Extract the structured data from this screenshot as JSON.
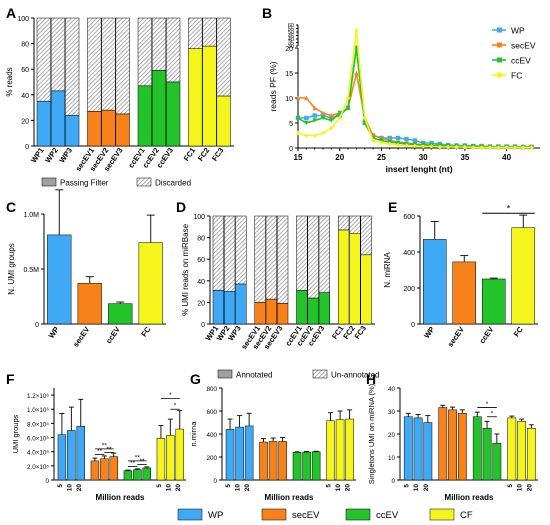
{
  "colors": {
    "WP": "#3fa9f5",
    "secEV": "#f7821b",
    "ccEV": "#22c42a",
    "FC": "#f5f51d",
    "annotated": "#a0a0a0",
    "hatch_bg": "#ffffff",
    "axis": "#000000"
  },
  "chart_data": [
    {
      "panel": "A",
      "type": "bar",
      "ylabel": "% reads",
      "ylim": [
        0,
        100
      ],
      "y_ticks": [
        "0",
        "20",
        "40",
        "60",
        "80",
        "100"
      ],
      "categories": [
        "WP1",
        "WP2",
        "WP3",
        "secEV1",
        "secEV2",
        "secEV3",
        "ccEV1",
        "ccEV2",
        "ccEV3",
        "FC1",
        "FC2",
        "FC3"
      ],
      "groups": [
        "WP",
        "WP",
        "WP",
        "secEV",
        "secEV",
        "secEV",
        "ccEV",
        "ccEV",
        "ccEV",
        "FC",
        "FC",
        "FC"
      ],
      "series": [
        {
          "name": "Passing Filter",
          "values": [
            35,
            43,
            24,
            27,
            28,
            25,
            47,
            59,
            50,
            76,
            78,
            39
          ]
        },
        {
          "name": "Discarded",
          "values": [
            65,
            57,
            76,
            73,
            72,
            75,
            53,
            41,
            50,
            24,
            22,
            61
          ]
        }
      ],
      "legend": [
        "Passing Filter",
        "Discarded"
      ]
    },
    {
      "panel": "B",
      "type": "line",
      "xlabel": "insert lenght (nt)",
      "ylabel": "reads PF (%)",
      "xlim": [
        15,
        44
      ],
      "x_ticks": [
        "15",
        "20",
        "25",
        "30",
        "35",
        "40"
      ],
      "y_ticks_low": [
        "0",
        "5",
        "10",
        "15",
        "20"
      ],
      "y_ticks_high": [
        "30",
        "35",
        "40",
        "45",
        "50",
        "55",
        "60"
      ],
      "x": [
        15,
        16,
        17,
        18,
        19,
        20,
        21,
        22,
        23,
        24,
        25,
        26,
        27,
        28,
        29,
        30,
        31,
        32,
        33,
        34,
        35,
        36,
        37,
        38,
        39,
        40,
        41,
        42,
        43
      ],
      "series": [
        {
          "name": "WP",
          "values": [
            6,
            6,
            6.5,
            6.5,
            6,
            6.5,
            8,
            22,
            5,
            2.5,
            2,
            2,
            2,
            1.8,
            1.5,
            1,
            1,
            0.8,
            0.6,
            0.5,
            0.5,
            0.4,
            0.4,
            0.3,
            0.3,
            0.3,
            0.3,
            0.2,
            0.2
          ]
        },
        {
          "name": "secEV",
          "values": [
            10,
            10,
            8,
            7,
            6.5,
            7,
            8,
            15,
            6,
            2.5,
            2,
            1.5,
            1.2,
            1,
            0.8,
            0.7,
            0.6,
            0.5,
            0.5,
            0.4,
            0.4,
            0.3,
            0.3,
            0.3,
            0.2,
            0.2,
            0.2,
            0.2,
            0.2
          ]
        },
        {
          "name": "ccEV",
          "values": [
            6,
            5,
            5.5,
            6,
            5.5,
            7,
            8,
            20,
            5,
            2,
            1.5,
            1.2,
            1,
            0.8,
            0.7,
            0.6,
            0.5,
            0.5,
            0.4,
            0.4,
            0.3,
            0.3,
            0.3,
            0.2,
            0.2,
            0.2,
            0.2,
            0.2,
            0.2
          ]
        },
        {
          "name": "FC",
          "values": [
            3,
            2.5,
            2.5,
            3,
            4,
            6,
            10,
            52,
            6,
            1.5,
            1,
            0.8,
            0.6,
            0.5,
            0.4,
            0.3,
            0.3,
            0.2,
            0.2,
            0.2,
            0.2,
            0.1,
            0.1,
            0.1,
            0.1,
            0.1,
            0.1,
            0.1,
            0.1
          ]
        }
      ],
      "legend": [
        "WP",
        "secEV",
        "ccEV",
        "FC"
      ]
    },
    {
      "panel": "C",
      "type": "bar",
      "ylabel": "N. UMI groups",
      "ylim": [
        0,
        1000000
      ],
      "y_ticks": [
        "0",
        "0.5M",
        "1.0M"
      ],
      "categories": [
        "WP",
        "secEV",
        "ccEV",
        "FC"
      ],
      "values": [
        810000,
        370000,
        185000,
        740000
      ],
      "errors": [
        410000,
        60000,
        15000,
        250000
      ]
    },
    {
      "panel": "D",
      "type": "bar",
      "ylabel": "% UMI reads on miRBase",
      "ylim": [
        0,
        100
      ],
      "y_ticks": [
        "0",
        "20",
        "40",
        "60",
        "80",
        "100"
      ],
      "categories": [
        "WP1",
        "WP2",
        "WP3",
        "secEV1",
        "secEV2",
        "secEV3",
        "ccEV1",
        "ccEV2",
        "ccEV3",
        "FC1",
        "FC2",
        "FC3"
      ],
      "groups": [
        "WP",
        "WP",
        "WP",
        "secEV",
        "secEV",
        "secEV",
        "ccEV",
        "ccEV",
        "ccEV",
        "FC",
        "FC",
        "FC"
      ],
      "series": [
        {
          "name": "Annotated",
          "values": [
            31,
            30,
            37,
            20,
            23,
            19,
            31,
            24,
            29,
            87,
            84,
            64
          ]
        },
        {
          "name": "Un-annotated",
          "values": [
            69,
            70,
            63,
            80,
            77,
            81,
            69,
            76,
            71,
            13,
            16,
            36
          ]
        }
      ],
      "legend": [
        "Annotated",
        "Un-annotated"
      ]
    },
    {
      "panel": "E",
      "type": "bar",
      "ylabel": "N. miRNA",
      "ylim": [
        0,
        600
      ],
      "y_ticks": [
        "0",
        "200",
        "400",
        "600"
      ],
      "categories": [
        "WP",
        "secEV",
        "ccEV",
        "FC"
      ],
      "values": [
        470,
        345,
        250,
        535
      ],
      "errors": [
        100,
        35,
        5,
        70
      ],
      "annotation": "*"
    },
    {
      "panel": "F",
      "type": "bar",
      "xlabel": "Million reads",
      "ylabel": "UMI groups",
      "ylim": [
        0,
        1300000
      ],
      "y_ticks": [
        "0",
        "2.0×10⁵",
        "4.0×10⁵",
        "6.0×10⁵",
        "8.0×10⁵",
        "1.0×10⁶",
        "1.2×10⁶"
      ],
      "x_ticks": [
        "5",
        "10",
        "20"
      ],
      "groups": [
        "WP",
        "secEV",
        "ccEV",
        "CF"
      ],
      "values": [
        [
          640000,
          700000,
          760000
        ],
        [
          270000,
          300000,
          330000
        ],
        [
          130000,
          145000,
          170000
        ],
        [
          590000,
          630000,
          720000
        ]
      ],
      "errors": [
        [
          300000,
          330000,
          380000
        ],
        [
          40000,
          40000,
          50000
        ],
        [
          10000,
          12000,
          15000
        ],
        [
          180000,
          230000,
          260000
        ]
      ],
      "annotations": [
        "**",
        "**",
        "**",
        "**",
        "**",
        "**",
        "*",
        "*"
      ]
    },
    {
      "panel": "G",
      "type": "bar",
      "xlabel": "Million reads",
      "ylabel": "n.mirna",
      "ylim": [
        0,
        800
      ],
      "y_ticks": [
        "0",
        "200",
        "400",
        "600",
        "800"
      ],
      "x_ticks": [
        "5",
        "10",
        "20"
      ],
      "groups": [
        "WP",
        "secEV",
        "ccEV",
        "CF"
      ],
      "values": [
        [
          440,
          460,
          470
        ],
        [
          330,
          335,
          335
        ],
        [
          240,
          243,
          245
        ],
        [
          515,
          525,
          530
        ]
      ],
      "errors": [
        [
          90,
          100,
          110
        ],
        [
          30,
          30,
          35
        ],
        [
          5,
          5,
          5
        ],
        [
          70,
          75,
          80
        ]
      ]
    },
    {
      "panel": "H",
      "type": "bar",
      "xlabel": "Million reads",
      "ylabel": "Singletons UMI on miRNA (%)",
      "ylim": [
        0,
        40
      ],
      "y_ticks": [
        "0",
        "10",
        "20",
        "30",
        "40"
      ],
      "x_ticks": [
        "5",
        "10",
        "20"
      ],
      "groups": [
        "WP",
        "secEV",
        "ccEV",
        "CF"
      ],
      "values": [
        [
          27.5,
          27,
          25
        ],
        [
          31.5,
          30.5,
          29
        ],
        [
          27.5,
          22.5,
          16
        ],
        [
          27,
          25.5,
          22.5
        ]
      ],
      "errors": [
        [
          1.5,
          1.5,
          3
        ],
        [
          1,
          1.2,
          1.5
        ],
        [
          2,
          3,
          4
        ],
        [
          0.8,
          1,
          1.5
        ]
      ],
      "annotations": [
        "*",
        "*"
      ]
    }
  ],
  "panel_labels": {
    "A": "A",
    "B": "B",
    "C": "C",
    "D": "D",
    "E": "E",
    "F": "F",
    "G": "G",
    "H": "H"
  },
  "bottom_legend": [
    "WP",
    "secEV",
    "ccEV",
    "CF"
  ]
}
